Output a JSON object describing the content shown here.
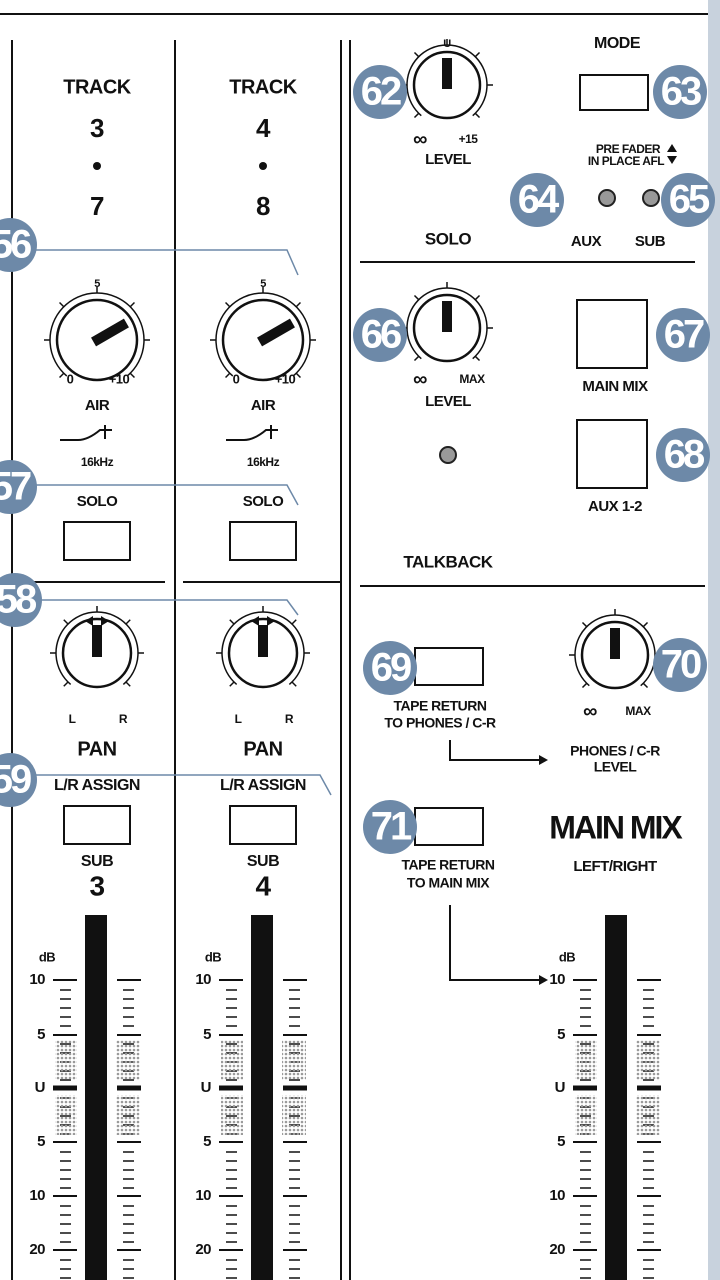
{
  "channels": [
    {
      "track": "TRACK",
      "number_top": "3",
      "number_bottom": "7",
      "air": {
        "scale_top": "5",
        "scale_min": "0",
        "scale_max": "+10",
        "label": "AIR",
        "frequency": "16kHz"
      },
      "solo": "SOLO",
      "pan": {
        "left": "L",
        "right": "R",
        "label": "PAN"
      },
      "assign": "L/R ASSIGN",
      "sub": "SUB",
      "sub_number": "3",
      "meter": {
        "unit": "dB",
        "scale": [
          "10",
          "5",
          "U",
          "5",
          "10",
          "20"
        ]
      }
    },
    {
      "track": "TRACK",
      "number_top": "4",
      "number_bottom": "8",
      "air": {
        "scale_top": "5",
        "scale_min": "0",
        "scale_max": "+10",
        "label": "AIR",
        "frequency": "16kHz"
      },
      "solo": "SOLO",
      "pan": {
        "left": "L",
        "right": "R",
        "label": "PAN"
      },
      "assign": "L/R ASSIGN",
      "sub": "SUB",
      "sub_number": "4",
      "meter": {
        "unit": "dB",
        "scale": [
          "10",
          "5",
          "U",
          "5",
          "10",
          "20"
        ]
      }
    }
  ],
  "channel_callouts": [
    "56",
    "57",
    "58",
    "59"
  ],
  "control_room": {
    "level_knob": {
      "callout": "62",
      "scale_top": "U",
      "scale_min": "∞",
      "scale_max": "+15",
      "label": "LEVEL"
    },
    "mode": {
      "title": "MODE",
      "callout": "63",
      "line1": "PRE FADER",
      "line2": "IN PLACE AFL"
    },
    "aux_led": {
      "callout": "64",
      "label": "AUX"
    },
    "sub_led": {
      "callout": "65",
      "label": "SUB"
    }
  },
  "solo": {
    "title": "SOLO",
    "level_knob": {
      "callout": "66",
      "scale_min": "∞",
      "scale_max": "MAX",
      "label": "LEVEL"
    },
    "main_mix_button": {
      "callout": "67",
      "label": "MAIN MIX"
    },
    "aux_button": {
      "callout": "68",
      "label": "AUX 1-2"
    }
  },
  "talkback": {
    "title": "TALKBACK",
    "phones_button": {
      "callout": "69",
      "line1": "TAPE RETURN",
      "line2": "TO PHONES / C-R"
    },
    "phones_knob": {
      "callout": "70",
      "scale_min": "∞",
      "scale_max": "MAX",
      "line1": "PHONES / C-R",
      "line2": "LEVEL"
    },
    "main_button": {
      "callout": "71",
      "line1": "TAPE RETURN",
      "line2": "TO MAIN MIX"
    }
  },
  "main_mix": {
    "title": "MAIN MIX",
    "subtitle": "LEFT/RIGHT",
    "meter": {
      "unit": "dB",
      "scale": [
        "10",
        "5",
        "U",
        "5",
        "10",
        "20"
      ]
    }
  }
}
